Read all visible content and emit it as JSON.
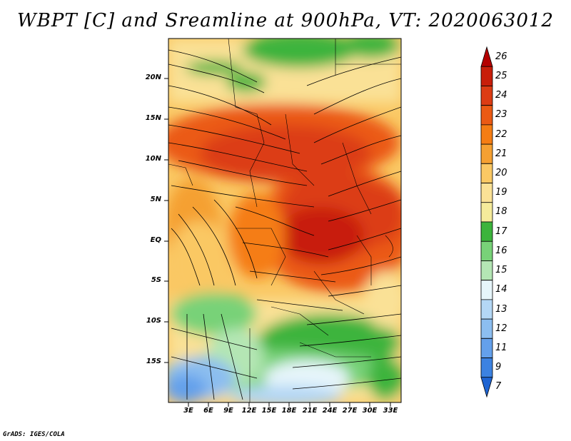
{
  "title": "WBPT [C] and Sreamline at 900hPa, VT: 2020063012",
  "footer": "GrADS: IGES/COLA",
  "lat_labels": [
    "20N",
    "15N",
    "10N",
    "5N",
    "EQ",
    "5S",
    "10S",
    "15S"
  ],
  "lon_labels": [
    "3E",
    "6E",
    "9E",
    "12E",
    "15E",
    "18E",
    "21E",
    "24E",
    "27E",
    "30E",
    "33E"
  ],
  "colorbar": {
    "labels": [
      "26",
      "25",
      "24",
      "23",
      "22",
      "21",
      "20",
      "19",
      "18",
      "17",
      "16",
      "15",
      "14",
      "13",
      "12",
      "11",
      "9",
      "7"
    ],
    "colors": [
      "#b40000",
      "#c81e0a",
      "#dc3c14",
      "#eb5a14",
      "#f57d14",
      "#f5a032",
      "#fac864",
      "#fae196",
      "#f5eb9b",
      "#3cb43c",
      "#78d278",
      "#b4e6b4",
      "#e6f5fa",
      "#b4d7f5",
      "#8cbef0",
      "#64a0eb",
      "#3c82e1",
      "#1e64d2"
    ]
  },
  "layers": {
    "field": "WBPT [C]",
    "vectors": "Streamline",
    "level": "900hPa",
    "valid_time": "2020063012"
  }
}
